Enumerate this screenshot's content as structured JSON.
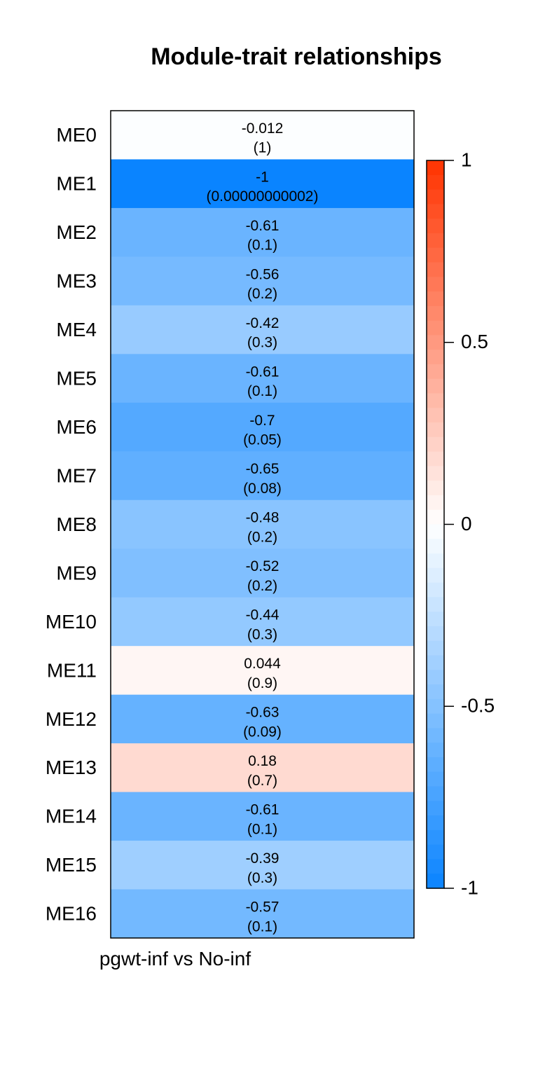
{
  "chart_data": {
    "type": "heatmap",
    "title": "Module-trait relationships",
    "columns": [
      "pgwt-inf vs No-inf"
    ],
    "rows": [
      "ME0",
      "ME1",
      "ME2",
      "ME3",
      "ME4",
      "ME5",
      "ME6",
      "ME7",
      "ME8",
      "ME9",
      "ME10",
      "ME11",
      "ME12",
      "ME13",
      "ME14",
      "ME15",
      "ME16"
    ],
    "values": [
      -0.012,
      -1,
      -0.61,
      -0.56,
      -0.42,
      -0.61,
      -0.7,
      -0.65,
      -0.48,
      -0.52,
      -0.44,
      0.044,
      -0.63,
      0.18,
      -0.61,
      -0.39,
      -0.57
    ],
    "value_labels": [
      "-0.012",
      "-1",
      "-0.61",
      "-0.56",
      "-0.42",
      "-0.61",
      "-0.7",
      "-0.65",
      "-0.48",
      "-0.52",
      "-0.44",
      "0.044",
      "-0.63",
      "0.18",
      "-0.61",
      "-0.39",
      "-0.57"
    ],
    "pvalue_labels": [
      "(1)",
      "(0.00000000002)",
      "(0.1)",
      "(0.2)",
      "(0.3)",
      "(0.1)",
      "(0.05)",
      "(0.08)",
      "(0.2)",
      "(0.2)",
      "(0.3)",
      "(0.9)",
      "(0.09)",
      "(0.7)",
      "(0.1)",
      "(0.3)",
      "(0.1)"
    ],
    "color_scale": {
      "range": [
        -1,
        1
      ],
      "low_color": "#0a84ff",
      "mid_color": "#ffffff",
      "high_color": "#ff3300",
      "ticks": [
        1,
        0.5,
        0,
        -0.5,
        -1
      ],
      "tick_labels": [
        "1",
        "0.5",
        "0",
        "-0.5",
        "-1"
      ]
    }
  }
}
